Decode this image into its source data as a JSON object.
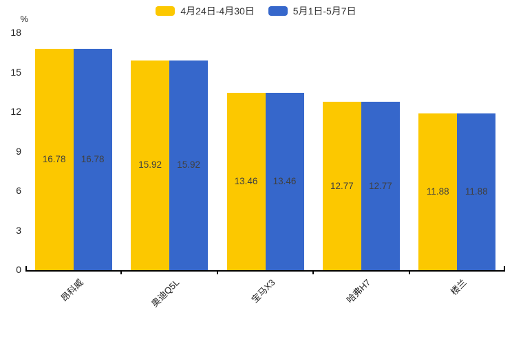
{
  "chart_data": {
    "type": "bar",
    "title": "",
    "ylabel": "%",
    "xlabel": "",
    "ylim": [
      0,
      18
    ],
    "yticks": [
      0,
      3,
      6,
      9,
      12,
      15,
      18
    ],
    "grid": false,
    "legend_position": "top-center",
    "categories": [
      "昂科威",
      "奥迪Q5L",
      "宝马X3",
      "哈弗H7",
      "楼兰"
    ],
    "series": [
      {
        "name": "4月24日-4月30日",
        "color": "#FCC800",
        "values": [
          16.78,
          15.92,
          13.46,
          12.77,
          11.88
        ]
      },
      {
        "name": "5月1日-5月7日",
        "color": "#3667CB",
        "values": [
          16.78,
          15.92,
          13.46,
          12.77,
          11.88
        ]
      }
    ],
    "value_labels": "inside-center",
    "value_label_color": "#404040",
    "axis_color": "#000000",
    "tick_label_color": "#222222",
    "background": "#FFFFFF"
  }
}
